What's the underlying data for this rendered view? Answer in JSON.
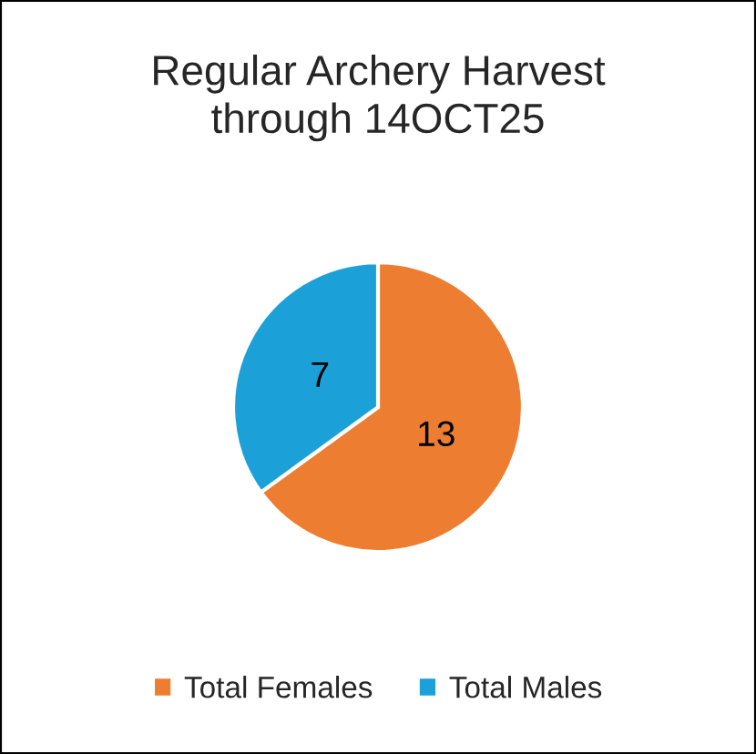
{
  "chart_data": {
    "type": "pie",
    "title": "Regular Archery Harvest\nthrough 14OCT25",
    "categories": [
      "Total Females",
      "Total Males"
    ],
    "values": [
      13,
      7
    ],
    "colors": [
      "#ed7d31",
      "#1ba1d8"
    ],
    "data_labels": true,
    "legend": "bottom"
  }
}
